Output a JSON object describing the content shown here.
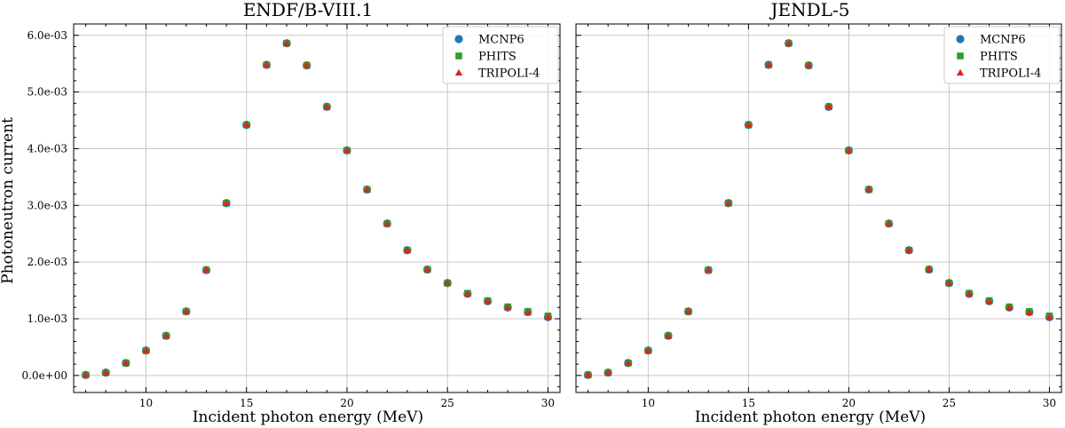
{
  "chart_data": [
    {
      "type": "scatter",
      "title": "ENDF/B-VIII.1",
      "xlabel": "Incident photon energy (MeV)",
      "ylabel": "Photoneutron current",
      "xlim": [
        6.4,
        30.6
      ],
      "ylim": [
        -0.0003,
        0.0062
      ],
      "xticks": [
        10,
        15,
        20,
        25,
        30
      ],
      "xtick_labels": [
        "10",
        "15",
        "20",
        "25",
        "30"
      ],
      "yticks": [
        0,
        0.001,
        0.002,
        0.003,
        0.004,
        0.005,
        0.006
      ],
      "ytick_labels": [
        "0.0e+00",
        "1.0e-03",
        "2.0e-03",
        "3.0e-03",
        "4.0e-03",
        "5.0e-03",
        "6.0e-03"
      ],
      "grid": true,
      "legend_position": "top-right",
      "x": [
        7,
        8,
        9,
        10,
        11,
        12,
        13,
        14,
        15,
        16,
        17,
        18,
        19,
        20,
        21,
        22,
        23,
        24,
        25,
        26,
        27,
        28,
        29,
        30
      ],
      "series": [
        {
          "name": "MCNP6",
          "marker": "circle",
          "color": "#1f77b4",
          "values": [
            1e-05,
            5e-05,
            0.00022,
            0.00044,
            0.0007,
            0.00113,
            0.00186,
            0.00304,
            0.00442,
            0.00548,
            0.00586,
            0.00547,
            0.00474,
            0.00397,
            0.00328,
            0.00268,
            0.00221,
            0.00187,
            0.00163,
            0.00144,
            0.00131,
            0.0012,
            0.00112,
            0.00103
          ]
        },
        {
          "name": "PHITS",
          "marker": "square",
          "color": "#2ca02c",
          "values": [
            1e-05,
            5e-05,
            0.00022,
            0.00044,
            0.0007,
            0.00113,
            0.00186,
            0.00304,
            0.00442,
            0.00548,
            0.00586,
            0.00547,
            0.00474,
            0.00397,
            0.00328,
            0.00268,
            0.00221,
            0.00187,
            0.00163,
            0.00145,
            0.00132,
            0.00121,
            0.00113,
            0.00105
          ]
        },
        {
          "name": "TRIPOLI-4",
          "marker": "triangle",
          "color": "#d62728",
          "values": [
            1e-05,
            5e-05,
            0.00022,
            0.00044,
            0.0007,
            0.00113,
            0.00186,
            0.00304,
            0.00442,
            0.00548,
            0.00586,
            0.00547,
            0.00474,
            0.00397,
            0.00328,
            0.00268,
            0.00221,
            0.00187,
            0.00163,
            0.00144,
            0.00131,
            0.0012,
            0.00111,
            0.00103
          ]
        }
      ]
    },
    {
      "type": "scatter",
      "title": "JENDL-5",
      "xlabel": "Incident photon energy (MeV)",
      "ylabel": "",
      "xlim": [
        6.4,
        30.6
      ],
      "ylim": [
        -0.0003,
        0.0062
      ],
      "xticks": [
        10,
        15,
        20,
        25,
        30
      ],
      "xtick_labels": [
        "10",
        "15",
        "20",
        "25",
        "30"
      ],
      "yticks": [
        0,
        0.001,
        0.002,
        0.003,
        0.004,
        0.005,
        0.006
      ],
      "ytick_labels": [],
      "grid": true,
      "legend_position": "top-right",
      "x": [
        7,
        8,
        9,
        10,
        11,
        12,
        13,
        14,
        15,
        16,
        17,
        18,
        19,
        20,
        21,
        22,
        23,
        24,
        25,
        26,
        27,
        28,
        29,
        30
      ],
      "series": [
        {
          "name": "MCNP6",
          "marker": "circle",
          "color": "#1f77b4",
          "values": [
            1e-05,
            5e-05,
            0.00022,
            0.00044,
            0.0007,
            0.00113,
            0.00186,
            0.00304,
            0.00442,
            0.00548,
            0.00586,
            0.00547,
            0.00474,
            0.00397,
            0.00328,
            0.00268,
            0.00221,
            0.00187,
            0.00163,
            0.00144,
            0.00131,
            0.0012,
            0.00112,
            0.00103
          ]
        },
        {
          "name": "PHITS",
          "marker": "square",
          "color": "#2ca02c",
          "values": [
            1e-05,
            5e-05,
            0.00022,
            0.00044,
            0.0007,
            0.00113,
            0.00186,
            0.00304,
            0.00442,
            0.00548,
            0.00586,
            0.00547,
            0.00474,
            0.00397,
            0.00328,
            0.00268,
            0.00221,
            0.00187,
            0.00163,
            0.00145,
            0.00132,
            0.00121,
            0.00113,
            0.00105
          ]
        },
        {
          "name": "TRIPOLI-4",
          "marker": "triangle",
          "color": "#d62728",
          "values": [
            1e-05,
            5e-05,
            0.00022,
            0.00044,
            0.0007,
            0.00113,
            0.00186,
            0.00304,
            0.00442,
            0.00548,
            0.00586,
            0.00547,
            0.00474,
            0.00397,
            0.00328,
            0.00268,
            0.00221,
            0.00187,
            0.00163,
            0.00144,
            0.00131,
            0.0012,
            0.00111,
            0.00103
          ]
        }
      ]
    }
  ]
}
